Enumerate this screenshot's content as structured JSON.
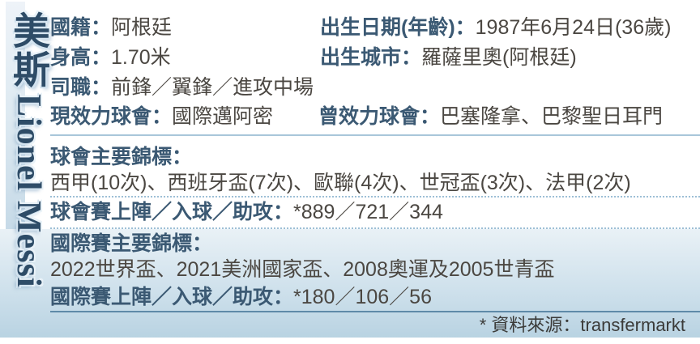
{
  "sidebar": {
    "name_cjk": "美斯",
    "name_latin": "Lionel Messi"
  },
  "profile": {
    "nationality_label": "國籍：",
    "nationality_value": "阿根廷",
    "birth_label": "出生日期(年齡)：",
    "birth_value": "1987年6月24日(36歲)",
    "height_label": "身高：",
    "height_value": "1.70米",
    "birthplace_label": "出生城市：",
    "birthplace_value": "羅薩里奧(阿根廷)",
    "position_label": "司職：",
    "position_value": "前鋒／翼鋒／進攻中場",
    "current_club_label": "現效力球會：",
    "current_club_value": "國際邁阿密",
    "former_club_label": "曾效力球會：",
    "former_club_value": "巴塞隆拿、巴黎聖日耳門"
  },
  "club": {
    "honours_label": "球會主要錦標：",
    "honours_value": "西甲(10次)、西班牙盃(7次)、歐聯(4次)、世冠盃(3次)、法甲(2次)",
    "stats_label": "球會賽上陣／入球／助攻：",
    "stats_value": "*889／721／344"
  },
  "international": {
    "honours_label": "國際賽主要錦標：",
    "honours_value": "2022世界盃、2021美洲國家盃、2008奧運及2005世青盃",
    "stats_label": "國際賽上陣／入球／助攻：",
    "stats_value": "*180／106／56"
  },
  "footer": {
    "source": "* 資料來源：transfermarkt"
  },
  "colors": {
    "label_blue": "#3b5973",
    "value_dark": "#4b4742",
    "title_navy": "#2e4c67",
    "strip_top": "#eef3f8",
    "strip_bottom": "#b5cfdf",
    "panel_top": "#e9f1f6",
    "panel_bottom": "#b9d3e2",
    "divider_light": "#a9c6da",
    "divider_dark": "#5f8aa8"
  }
}
